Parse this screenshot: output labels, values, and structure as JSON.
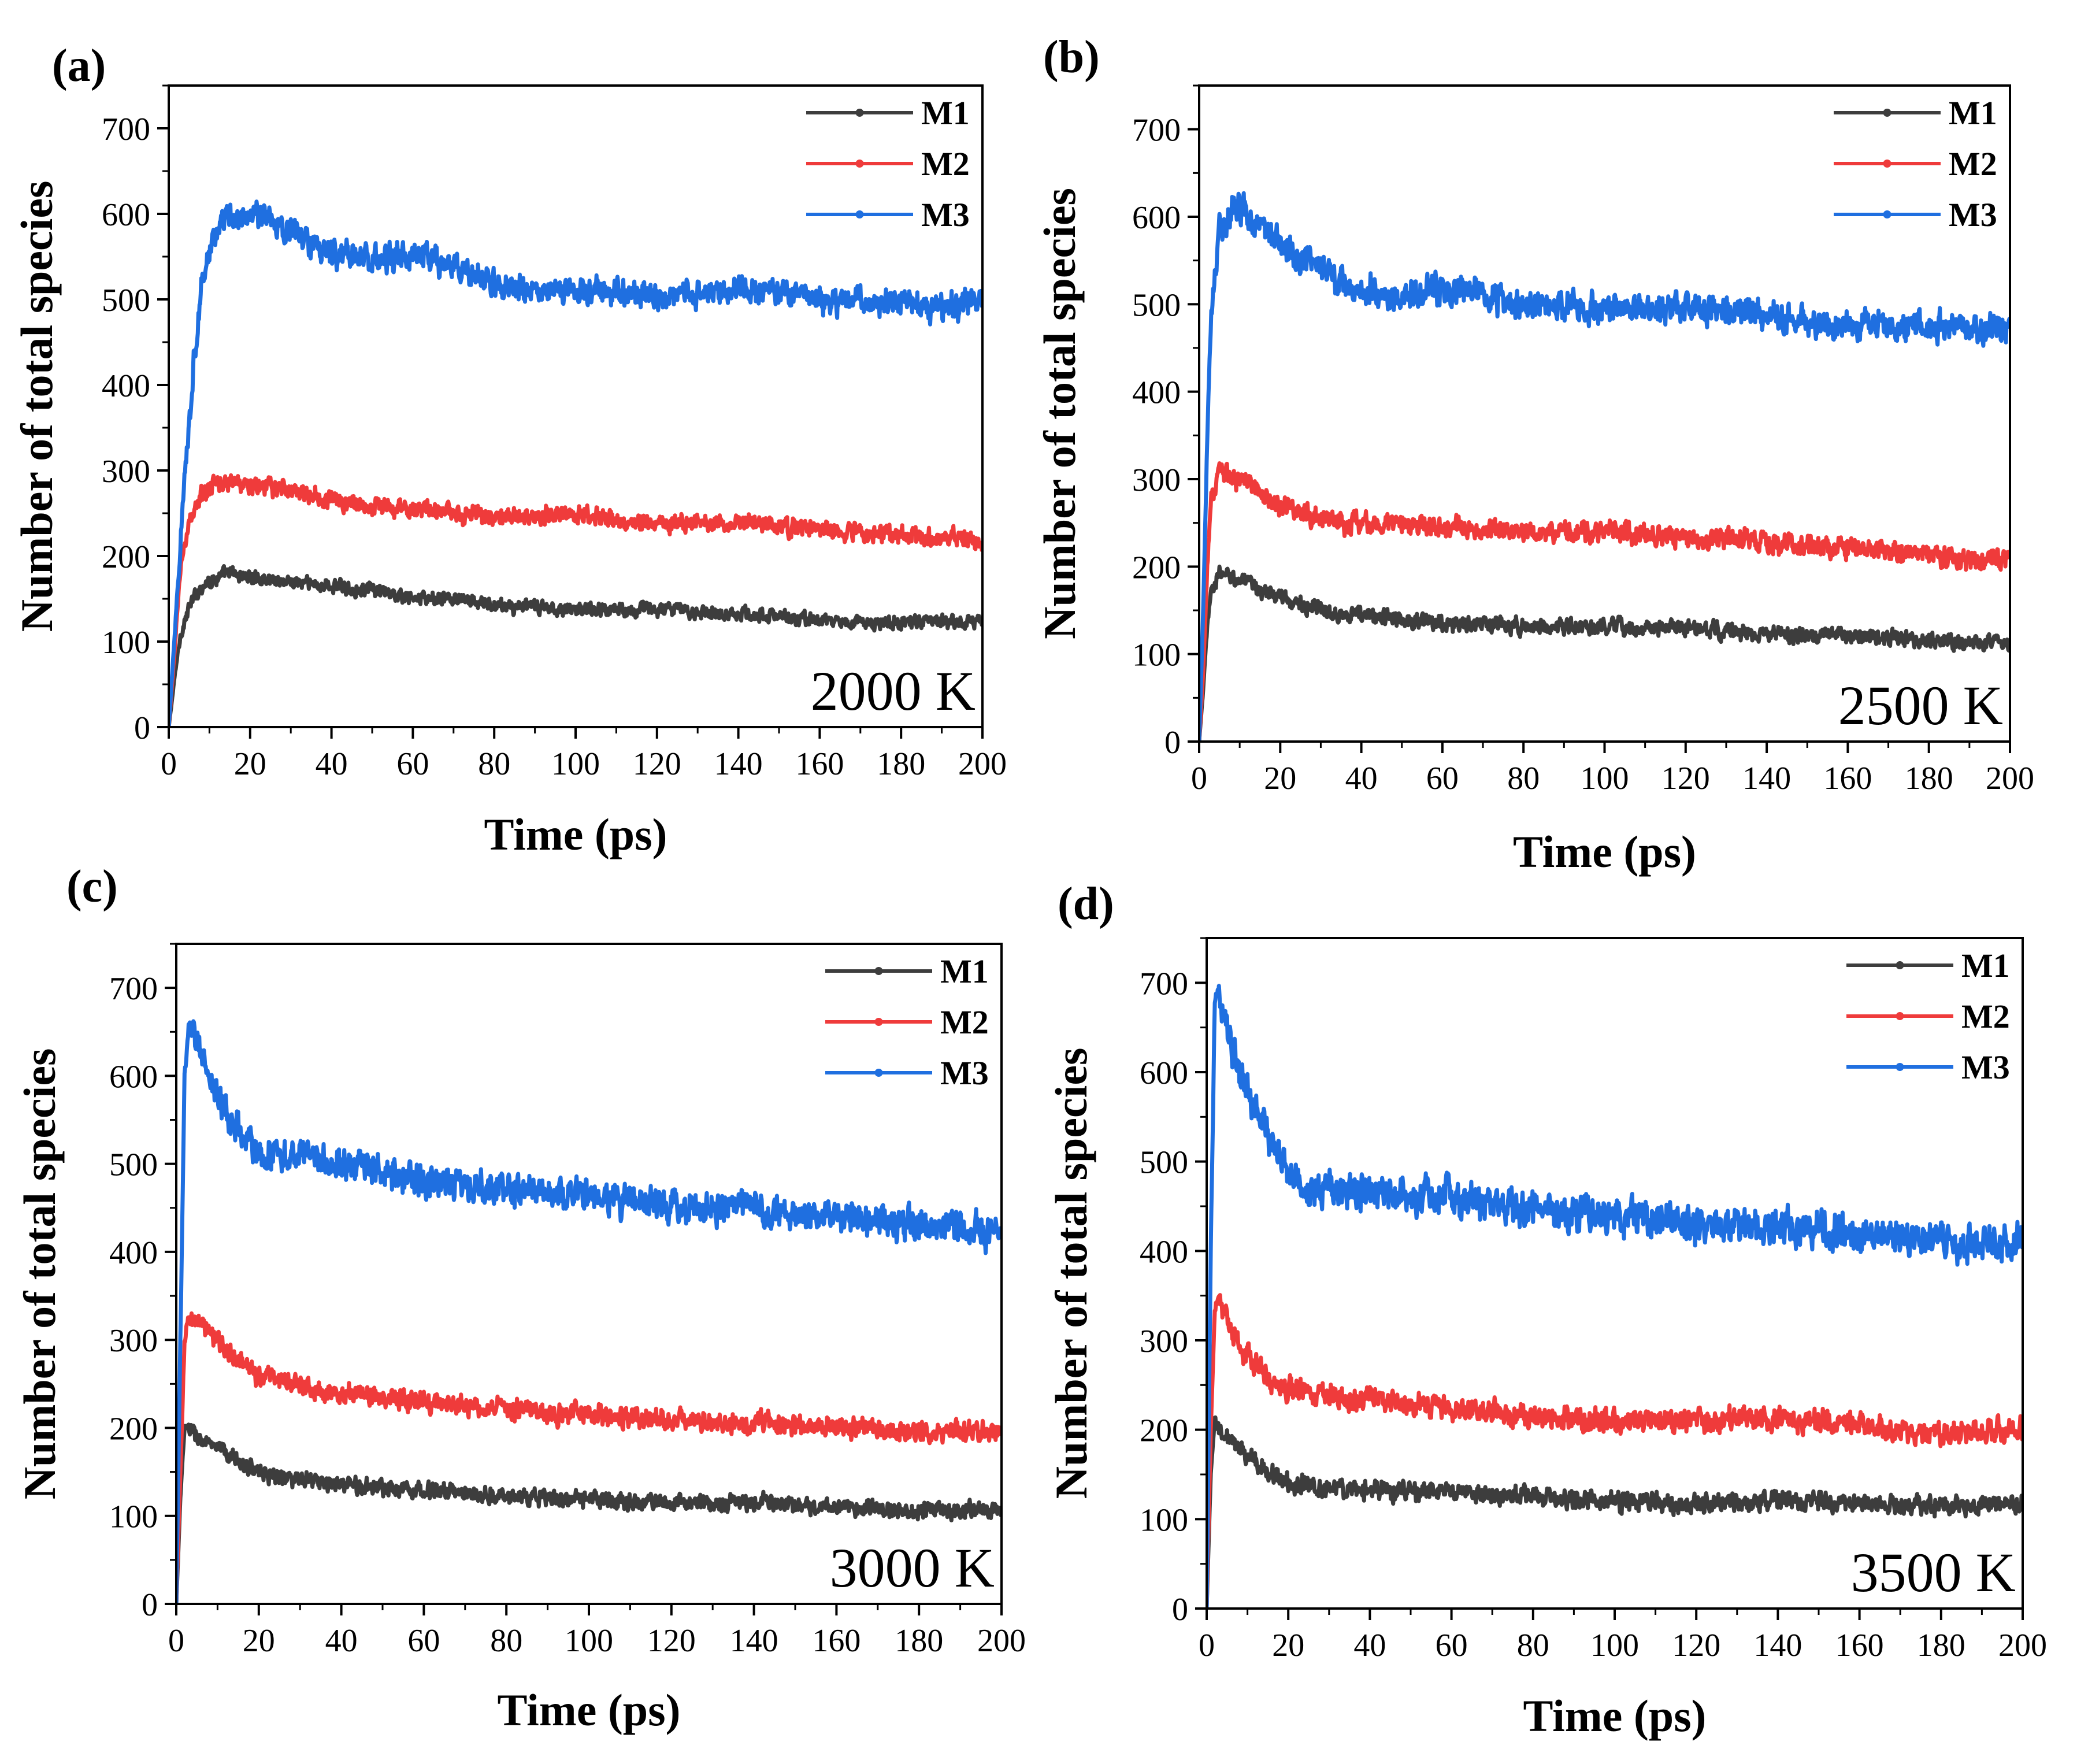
{
  "figure": {
    "colors": {
      "M1": "#3d3d3d",
      "M2": "#ef3b3b",
      "M3": "#1f6fe0"
    }
  },
  "chart_data": [
    {
      "type": "line",
      "panel_label": "(a)",
      "annotation": "2000 K",
      "xlabel": "Time (ps)",
      "ylabel": "Number of total species",
      "xlim": [
        0,
        200
      ],
      "ylim": [
        0,
        750
      ],
      "xticks": [
        0,
        20,
        40,
        60,
        80,
        100,
        120,
        140,
        160,
        180,
        200
      ],
      "yticks": [
        0,
        100,
        200,
        300,
        400,
        500,
        600,
        700
      ],
      "legend_position": "top-right",
      "grid": false,
      "series": [
        {
          "name": "M1",
          "color": "#3d3d3d",
          "noise": 6,
          "points": [
            [
              0,
              0
            ],
            [
              1,
              40
            ],
            [
              2,
              80
            ],
            [
              3,
              110
            ],
            [
              5,
              140
            ],
            [
              8,
              165
            ],
            [
              12,
              175
            ],
            [
              15,
              180
            ],
            [
              20,
              175
            ],
            [
              30,
              170
            ],
            [
              40,
              165
            ],
            [
              50,
              160
            ],
            [
              60,
              150
            ],
            [
              70,
              150
            ],
            [
              80,
              142
            ],
            [
              100,
              138
            ],
            [
              120,
              138
            ],
            [
              140,
              133
            ],
            [
              160,
              125
            ],
            [
              170,
              122
            ],
            [
              180,
              122
            ],
            [
              200,
              125
            ]
          ]
        },
        {
          "name": "M2",
          "color": "#ef3b3b",
          "noise": 8,
          "points": [
            [
              0,
              0
            ],
            [
              1,
              60
            ],
            [
              2,
              130
            ],
            [
              3,
              190
            ],
            [
              5,
              240
            ],
            [
              8,
              270
            ],
            [
              12,
              285
            ],
            [
              15,
              288
            ],
            [
              20,
              282
            ],
            [
              30,
              278
            ],
            [
              40,
              265
            ],
            [
              50,
              258
            ],
            [
              60,
              255
            ],
            [
              80,
              245
            ],
            [
              100,
              250
            ],
            [
              110,
              240
            ],
            [
              120,
              240
            ],
            [
              140,
              240
            ],
            [
              160,
              230
            ],
            [
              180,
              225
            ],
            [
              200,
              218
            ]
          ]
        },
        {
          "name": "M3",
          "color": "#1f6fe0",
          "noise": 12,
          "points": [
            [
              0,
              0
            ],
            [
              2,
              150
            ],
            [
              4,
              300
            ],
            [
              6,
              420
            ],
            [
              8,
              510
            ],
            [
              10,
              560
            ],
            [
              12,
              580
            ],
            [
              15,
              595
            ],
            [
              20,
              600
            ],
            [
              25,
              595
            ],
            [
              30,
              580
            ],
            [
              40,
              555
            ],
            [
              50,
              545
            ],
            [
              60,
              550
            ],
            [
              70,
              540
            ],
            [
              80,
              520
            ],
            [
              90,
              505
            ],
            [
              100,
              510
            ],
            [
              120,
              505
            ],
            [
              140,
              510
            ],
            [
              160,
              500
            ],
            [
              180,
              495
            ],
            [
              190,
              490
            ],
            [
              200,
              500
            ]
          ]
        }
      ]
    },
    {
      "type": "line",
      "panel_label": "(b)",
      "annotation": "2500 K",
      "xlabel": "Time (ps)",
      "ylabel": "Number of total species",
      "xlim": [
        0,
        200
      ],
      "ylim": [
        0,
        750
      ],
      "xticks": [
        0,
        20,
        40,
        60,
        80,
        100,
        120,
        140,
        160,
        180,
        200
      ],
      "yticks": [
        0,
        100,
        200,
        300,
        400,
        500,
        600,
        700
      ],
      "legend_position": "top-right",
      "grid": false,
      "series": [
        {
          "name": "M1",
          "color": "#3d3d3d",
          "noise": 7,
          "points": [
            [
              0,
              0
            ],
            [
              1,
              60
            ],
            [
              2,
              130
            ],
            [
              3,
              175
            ],
            [
              5,
              190
            ],
            [
              8,
              190
            ],
            [
              12,
              180
            ],
            [
              20,
              165
            ],
            [
              30,
              150
            ],
            [
              40,
              145
            ],
            [
              50,
              140
            ],
            [
              60,
              135
            ],
            [
              80,
              132
            ],
            [
              100,
              130
            ],
            [
              120,
              130
            ],
            [
              140,
              122
            ],
            [
              160,
              120
            ],
            [
              180,
              117
            ],
            [
              200,
              112
            ]
          ]
        },
        {
          "name": "M2",
          "color": "#ef3b3b",
          "noise": 9,
          "points": [
            [
              0,
              0
            ],
            [
              1,
              80
            ],
            [
              2,
              200
            ],
            [
              3,
              280
            ],
            [
              5,
              305
            ],
            [
              8,
              305
            ],
            [
              12,
              295
            ],
            [
              20,
              270
            ],
            [
              30,
              255
            ],
            [
              40,
              250
            ],
            [
              60,
              245
            ],
            [
              80,
              240
            ],
            [
              100,
              240
            ],
            [
              120,
              235
            ],
            [
              140,
              230
            ],
            [
              160,
              220
            ],
            [
              180,
              215
            ],
            [
              190,
              205
            ],
            [
              200,
              210
            ]
          ]
        },
        {
          "name": "M3",
          "color": "#1f6fe0",
          "noise": 13,
          "points": [
            [
              0,
              0
            ],
            [
              1,
              150
            ],
            [
              2,
              350
            ],
            [
              3,
              500
            ],
            [
              5,
              590
            ],
            [
              8,
              605
            ],
            [
              10,
              610
            ],
            [
              15,
              590
            ],
            [
              20,
              565
            ],
            [
              30,
              540
            ],
            [
              40,
              515
            ],
            [
              50,
              510
            ],
            [
              60,
              515
            ],
            [
              80,
              500
            ],
            [
              100,
              495
            ],
            [
              120,
              495
            ],
            [
              140,
              490
            ],
            [
              160,
              475
            ],
            [
              180,
              475
            ],
            [
              190,
              470
            ],
            [
              200,
              475
            ]
          ]
        }
      ]
    },
    {
      "type": "line",
      "panel_label": "(c)",
      "annotation": "3000 K",
      "xlabel": "Time (ps)",
      "ylabel": "Number of total species",
      "xlim": [
        0,
        200
      ],
      "ylim": [
        0,
        750
      ],
      "xticks": [
        0,
        20,
        40,
        60,
        80,
        100,
        120,
        140,
        160,
        180,
        200
      ],
      "yticks": [
        0,
        100,
        200,
        300,
        400,
        500,
        600,
        700
      ],
      "legend_position": "top-right",
      "grid": false,
      "series": [
        {
          "name": "M1",
          "color": "#3d3d3d",
          "noise": 7,
          "points": [
            [
              0,
              0
            ],
            [
              1,
              120
            ],
            [
              2,
              200
            ],
            [
              3,
              200
            ],
            [
              5,
              190
            ],
            [
              10,
              175
            ],
            [
              20,
              150
            ],
            [
              30,
              140
            ],
            [
              40,
              135
            ],
            [
              60,
              130
            ],
            [
              80,
              122
            ],
            [
              100,
              118
            ],
            [
              120,
              115
            ],
            [
              140,
              115
            ],
            [
              160,
              110
            ],
            [
              180,
              105
            ],
            [
              200,
              108
            ]
          ]
        },
        {
          "name": "M2",
          "color": "#ef3b3b",
          "noise": 9,
          "points": [
            [
              0,
              0
            ],
            [
              1,
              150
            ],
            [
              2,
              300
            ],
            [
              3,
              325
            ],
            [
              5,
              320
            ],
            [
              10,
              300
            ],
            [
              15,
              275
            ],
            [
              20,
              260
            ],
            [
              30,
              250
            ],
            [
              40,
              240
            ],
            [
              60,
              230
            ],
            [
              80,
              220
            ],
            [
              100,
              215
            ],
            [
              120,
              210
            ],
            [
              140,
              205
            ],
            [
              160,
              200
            ],
            [
              180,
              195
            ],
            [
              200,
              198
            ]
          ]
        },
        {
          "name": "M3",
          "color": "#1f6fe0",
          "noise": 14,
          "points": [
            [
              0,
              0
            ],
            [
              1,
              300
            ],
            [
              2,
              600
            ],
            [
              3,
              660
            ],
            [
              5,
              640
            ],
            [
              8,
              600
            ],
            [
              12,
              560
            ],
            [
              16,
              530
            ],
            [
              20,
              515
            ],
            [
              30,
              510
            ],
            [
              40,
              500
            ],
            [
              50,
              490
            ],
            [
              60,
              480
            ],
            [
              80,
              470
            ],
            [
              100,
              465
            ],
            [
              120,
              455
            ],
            [
              140,
              450
            ],
            [
              160,
              440
            ],
            [
              180,
              430
            ],
            [
              190,
              425
            ],
            [
              200,
              425
            ]
          ]
        }
      ]
    },
    {
      "type": "line",
      "panel_label": "(d)",
      "annotation": "3500 K",
      "xlabel": "Time (ps)",
      "ylabel": "Number of total species",
      "xlim": [
        0,
        200
      ],
      "ylim": [
        0,
        750
      ],
      "xticks": [
        0,
        20,
        40,
        60,
        80,
        100,
        120,
        140,
        160,
        180,
        200
      ],
      "yticks": [
        0,
        100,
        200,
        300,
        400,
        500,
        600,
        700
      ],
      "legend_position": "top-right",
      "grid": false,
      "series": [
        {
          "name": "M1",
          "color": "#3d3d3d",
          "noise": 8,
          "points": [
            [
              0,
              0
            ],
            [
              1,
              150
            ],
            [
              2,
              210
            ],
            [
              3,
              200
            ],
            [
              5,
              190
            ],
            [
              10,
              170
            ],
            [
              15,
              155
            ],
            [
              20,
              140
            ],
            [
              30,
              135
            ],
            [
              40,
              132
            ],
            [
              60,
              130
            ],
            [
              80,
              125
            ],
            [
              100,
              120
            ],
            [
              120,
              118
            ],
            [
              140,
              120
            ],
            [
              160,
              118
            ],
            [
              180,
              115
            ],
            [
              200,
              118
            ]
          ]
        },
        {
          "name": "M2",
          "color": "#ef3b3b",
          "noise": 10,
          "points": [
            [
              0,
              0
            ],
            [
              1,
              200
            ],
            [
              2,
              340
            ],
            [
              3,
              350
            ],
            [
              5,
              320
            ],
            [
              10,
              280
            ],
            [
              15,
              255
            ],
            [
              20,
              245
            ],
            [
              30,
              238
            ],
            [
              40,
              235
            ],
            [
              60,
              225
            ],
            [
              80,
              215
            ],
            [
              100,
              210
            ],
            [
              120,
              210
            ],
            [
              140,
              212
            ],
            [
              160,
              205
            ],
            [
              170,
              195
            ],
            [
              180,
              195
            ],
            [
              200,
              200
            ]
          ]
        },
        {
          "name": "M3",
          "color": "#1f6fe0",
          "noise": 15,
          "points": [
            [
              0,
              0
            ],
            [
              1,
              400
            ],
            [
              2,
              680
            ],
            [
              3,
              690
            ],
            [
              5,
              650
            ],
            [
              8,
              600
            ],
            [
              12,
              560
            ],
            [
              16,
              520
            ],
            [
              20,
              490
            ],
            [
              25,
              470
            ],
            [
              30,
              470
            ],
            [
              40,
              465
            ],
            [
              60,
              460
            ],
            [
              80,
              445
            ],
            [
              100,
              440
            ],
            [
              120,
              430
            ],
            [
              140,
              425
            ],
            [
              160,
              420
            ],
            [
              180,
              410
            ],
            [
              190,
              405
            ],
            [
              200,
              410
            ]
          ]
        }
      ]
    }
  ]
}
